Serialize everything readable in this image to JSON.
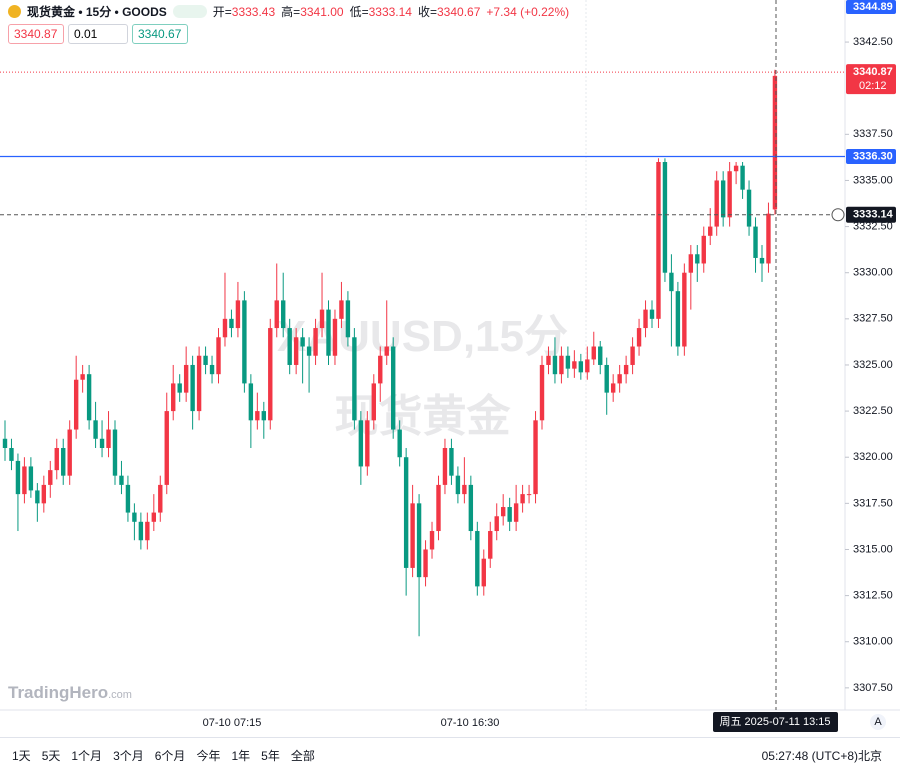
{
  "header": {
    "title": "现货黄金 • 15分 • GOODS",
    "ohlc": [
      {
        "label": "开=",
        "value": "3333.43"
      },
      {
        "label": "高=",
        "value": "3341.00"
      },
      {
        "label": "低=",
        "value": "3333.14"
      },
      {
        "label": "收=",
        "value": "3340.67"
      }
    ],
    "change": "+7.34 (+0.22%)",
    "sell": "3340.87",
    "spread": "0.01",
    "buy": "3340.67"
  },
  "watermark": [
    "XAUUSD,15分",
    "现货黄金"
  ],
  "logo": "TradingHero",
  "logo_suffix": ".com",
  "toolbar": {
    "ranges": [
      "1天",
      "5天",
      "1个月",
      "3个月",
      "6个月",
      "今年",
      "1年",
      "5年",
      "全部"
    ],
    "clock": "05:27:48",
    "timezone": "(UTC+8)北京",
    "auto": "A"
  },
  "chart_data": {
    "type": "candlestick",
    "up_color": "#f23645",
    "down_color": "#089981",
    "ylim": [
      3306.3,
      3344.78
    ],
    "yticks": [
      {
        "value": 3342.5,
        "label": "3342.50"
      },
      {
        "value": 3337.5,
        "label": "3337.50"
      },
      {
        "value": 3335,
        "label": "3335.00"
      },
      {
        "value": 3332.5,
        "label": "3332.50"
      },
      {
        "value": 3330,
        "label": "3330.00"
      },
      {
        "value": 3327.5,
        "label": "3327.50"
      },
      {
        "value": 3325,
        "label": "3325.00"
      },
      {
        "value": 3322.5,
        "label": "3322.50"
      },
      {
        "value": 3320,
        "label": "3320.00"
      },
      {
        "value": 3317.5,
        "label": "3317.50"
      },
      {
        "value": 3315,
        "label": "3315.00"
      },
      {
        "value": 3312.5,
        "label": "3312.50"
      },
      {
        "value": 3310,
        "label": "3310.00"
      },
      {
        "value": 3307.5,
        "label": "3307.50"
      }
    ],
    "xlabels": [
      "07-10 07:15",
      "07-10 16:30"
    ],
    "scale_top": 3344.89,
    "last_price": 3340.87,
    "countdown": "02:12",
    "alert_line": {
      "value": 3336.3,
      "label": "3336.30"
    },
    "crosshair_price": 3333.14,
    "crosshair_time": "周五 2025-07-11 13:15",
    "candles": [
      [
        3321,
        3322,
        3319.8,
        3320.5
      ],
      [
        3320.5,
        3321,
        3319.3,
        3319.8
      ],
      [
        3319.8,
        3320.2,
        3316,
        3318
      ],
      [
        3318,
        3320,
        3317.5,
        3319.5
      ],
      [
        3319.5,
        3320,
        3317.8,
        3318.2
      ],
      [
        3318.2,
        3318.6,
        3316.5,
        3317.5
      ],
      [
        3317.5,
        3319,
        3317,
        3318.5
      ],
      [
        3318.5,
        3319.8,
        3317.8,
        3319.3
      ],
      [
        3319.3,
        3321,
        3318.8,
        3320.5
      ],
      [
        3320.5,
        3321,
        3318.5,
        3319
      ],
      [
        3319,
        3322,
        3318.5,
        3321.5
      ],
      [
        3321.5,
        3325.5,
        3321,
        3324.2
      ],
      [
        3324.2,
        3325,
        3323.5,
        3324.5
      ],
      [
        3324.5,
        3325,
        3321.5,
        3322
      ],
      [
        3322,
        3323,
        3320.5,
        3321
      ],
      [
        3321,
        3322,
        3320,
        3320.5
      ],
      [
        3320.5,
        3322.5,
        3320,
        3321.5
      ],
      [
        3321.5,
        3322,
        3318.5,
        3319
      ],
      [
        3319,
        3319.8,
        3318,
        3318.5
      ],
      [
        3318.5,
        3319,
        3316.5,
        3317
      ],
      [
        3317,
        3317.5,
        3315.5,
        3316.5
      ],
      [
        3316.5,
        3317,
        3315,
        3315.5
      ],
      [
        3315.5,
        3317,
        3315,
        3316.5
      ],
      [
        3316.5,
        3318,
        3316,
        3317
      ],
      [
        3317,
        3319,
        3316.5,
        3318.5
      ],
      [
        3318.5,
        3323.5,
        3318,
        3322.5
      ],
      [
        3322.5,
        3325,
        3322,
        3324
      ],
      [
        3324,
        3324.5,
        3323,
        3323.5
      ],
      [
        3323.5,
        3326,
        3323,
        3325
      ],
      [
        3325,
        3325.5,
        3321.5,
        3322.5
      ],
      [
        3322.5,
        3326,
        3322,
        3325.5
      ],
      [
        3325.5,
        3326,
        3324.5,
        3325
      ],
      [
        3325,
        3325.5,
        3324,
        3324.5
      ],
      [
        3324.5,
        3327,
        3324,
        3326.5
      ],
      [
        3326.5,
        3330,
        3326,
        3327.5
      ],
      [
        3327.5,
        3328,
        3326.5,
        3327
      ],
      [
        3327,
        3329.5,
        3326.5,
        3328.5
      ],
      [
        3328.5,
        3329,
        3323.5,
        3324
      ],
      [
        3324,
        3324.5,
        3320.5,
        3322
      ],
      [
        3322,
        3323.5,
        3321.5,
        3322.5
      ],
      [
        3322.5,
        3323,
        3321,
        3322
      ],
      [
        3322,
        3327.5,
        3321.5,
        3327
      ],
      [
        3327,
        3330.5,
        3326.5,
        3328.5
      ],
      [
        3328.5,
        3330,
        3326.5,
        3327
      ],
      [
        3327,
        3327.5,
        3324.5,
        3325
      ],
      [
        3325,
        3327,
        3324.5,
        3326.5
      ],
      [
        3326.5,
        3327,
        3324,
        3326
      ],
      [
        3326,
        3326.5,
        3323.5,
        3325.5
      ],
      [
        3325.5,
        3327.5,
        3325,
        3327
      ],
      [
        3327,
        3330,
        3326.5,
        3328
      ],
      [
        3328,
        3328.5,
        3325,
        3325.5
      ],
      [
        3325.5,
        3328,
        3325,
        3327.5
      ],
      [
        3327.5,
        3329.5,
        3327,
        3328.5
      ],
      [
        3328.5,
        3329,
        3326,
        3326.5
      ],
      [
        3326.5,
        3327,
        3321.5,
        3322
      ],
      [
        3322,
        3322.5,
        3318.5,
        3319.5
      ],
      [
        3319.5,
        3322.5,
        3319,
        3322
      ],
      [
        3322,
        3324.5,
        3321.5,
        3324
      ],
      [
        3324,
        3326,
        3323,
        3325.5
      ],
      [
        3325.5,
        3328.5,
        3325,
        3326
      ],
      [
        3326,
        3326.5,
        3321,
        3321.5
      ],
      [
        3321.5,
        3322,
        3319.5,
        3320
      ],
      [
        3320,
        3320.5,
        3312.5,
        3314
      ],
      [
        3314,
        3318.5,
        3313.5,
        3317.5
      ],
      [
        3317.5,
        3318,
        3310.3,
        3313.5
      ],
      [
        3313.5,
        3315.5,
        3313,
        3315
      ],
      [
        3315,
        3316.5,
        3314.5,
        3316
      ],
      [
        3316,
        3319,
        3315.5,
        3318.5
      ],
      [
        3318.5,
        3321,
        3318,
        3320.5
      ],
      [
        3320.5,
        3321,
        3318.5,
        3319
      ],
      [
        3319,
        3319.5,
        3317.5,
        3318
      ],
      [
        3318,
        3320,
        3317.5,
        3318.5
      ],
      [
        3318.5,
        3319,
        3315.5,
        3316
      ],
      [
        3316,
        3316.5,
        3312.5,
        3313
      ],
      [
        3313,
        3315,
        3312.5,
        3314.5
      ],
      [
        3314.5,
        3316.5,
        3314,
        3316
      ],
      [
        3316,
        3317.5,
        3315.5,
        3316.8
      ],
      [
        3316.8,
        3318,
        3316.3,
        3317.3
      ],
      [
        3317.3,
        3317.8,
        3316,
        3316.5
      ],
      [
        3316.5,
        3318.5,
        3316,
        3317.5
      ],
      [
        3317.5,
        3318.5,
        3317,
        3318
      ],
      [
        3318,
        3318.5,
        3317.5,
        3318
      ],
      [
        3318,
        3322.5,
        3317.5,
        3322
      ],
      [
        3322,
        3325.5,
        3321.5,
        3325
      ],
      [
        3325,
        3326,
        3324.5,
        3325.5
      ],
      [
        3325.5,
        3326.5,
        3324,
        3324.5
      ],
      [
        3324.5,
        3326,
        3324,
        3325.5
      ],
      [
        3325.5,
        3326,
        3324.3,
        3324.8
      ],
      [
        3324.8,
        3325.8,
        3324.3,
        3325.2
      ],
      [
        3325.2,
        3325.6,
        3324.2,
        3324.6
      ],
      [
        3324.6,
        3326,
        3324.2,
        3325.3
      ],
      [
        3325.3,
        3326.8,
        3325,
        3326
      ],
      [
        3326,
        3326.3,
        3324.5,
        3325
      ],
      [
        3325,
        3325.4,
        3322.3,
        3323.5
      ],
      [
        3323.5,
        3324.5,
        3323,
        3324
      ],
      [
        3324,
        3325,
        3323.5,
        3324.5
      ],
      [
        3324.5,
        3325.5,
        3324,
        3325
      ],
      [
        3325,
        3326.5,
        3324.5,
        3326
      ],
      [
        3326,
        3327.5,
        3325.5,
        3327
      ],
      [
        3327,
        3328.5,
        3326.5,
        3328
      ],
      [
        3328,
        3328.5,
        3327,
        3327.5
      ],
      [
        3327.5,
        3336.2,
        3327,
        3336
      ],
      [
        3336,
        3336.2,
        3329.5,
        3330
      ],
      [
        3330,
        3331,
        3326,
        3329
      ],
      [
        3329,
        3329.5,
        3325.5,
        3326
      ],
      [
        3326,
        3330.5,
        3325.5,
        3330
      ],
      [
        3330,
        3331.5,
        3328,
        3331
      ],
      [
        3331,
        3331.5,
        3329.5,
        3330.5
      ],
      [
        3330.5,
        3332.5,
        3330,
        3332
      ],
      [
        3332,
        3333.5,
        3331.5,
        3332.5
      ],
      [
        3332.5,
        3335.5,
        3332,
        3335
      ],
      [
        3335,
        3335.5,
        3332.5,
        3333
      ],
      [
        3333,
        3336,
        3332.5,
        3335.5
      ],
      [
        3335.5,
        3336,
        3334.8,
        3335.8
      ],
      [
        3335.8,
        3336,
        3334,
        3334.5
      ],
      [
        3334.5,
        3335,
        3332,
        3332.5
      ],
      [
        3332.5,
        3333,
        3330,
        3330.8
      ],
      [
        3330.8,
        3331.5,
        3329.5,
        3330.5
      ],
      [
        3330.5,
        3333.8,
        3330,
        3333.2
      ],
      [
        3333.43,
        3341.0,
        3333.14,
        3340.67
      ]
    ]
  }
}
